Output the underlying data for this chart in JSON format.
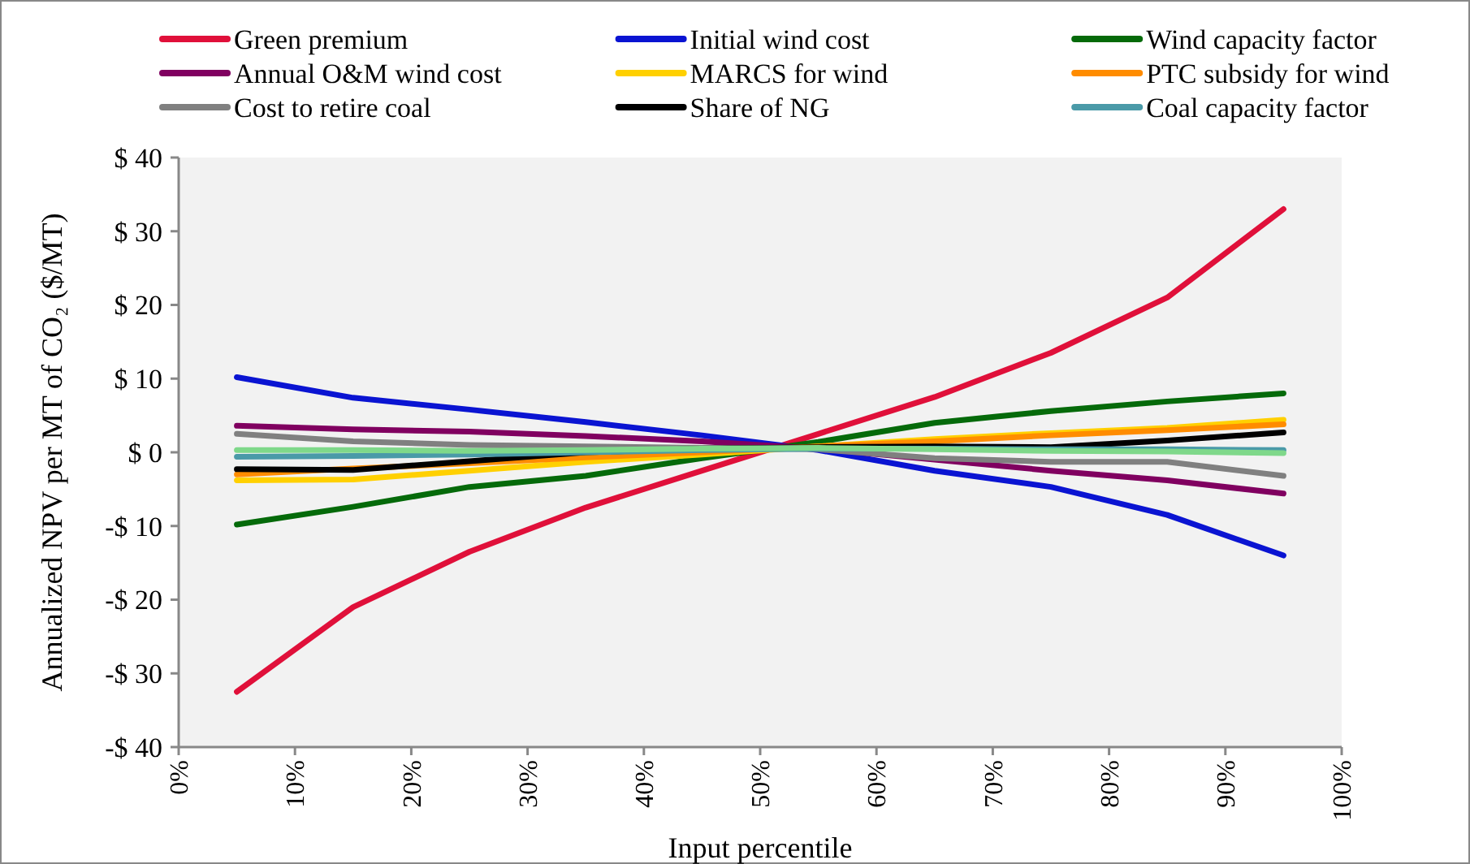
{
  "chart_data": {
    "type": "line",
    "xlabel": "Input percentile",
    "ylabel": "Annualized NPV per MT of CO₂ ($/MT)",
    "x": [
      5,
      15,
      25,
      35,
      45,
      55,
      65,
      75,
      85,
      95
    ],
    "series": [
      {
        "name": "Green premium",
        "color": "#e0103a",
        "values": [
          -32.5,
          -21,
          -13.5,
          -7.5,
          -2.5,
          2.5,
          7.5,
          13.5,
          21,
          33
        ]
      },
      {
        "name": "Initial wind cost",
        "color": "#0a14d2",
        "values": [
          10.2,
          7.4,
          5.8,
          4.1,
          2.3,
          0.3,
          -2.5,
          -4.7,
          -8.5,
          -14
        ]
      },
      {
        "name": "Wind capacity factor",
        "color": "#056a0a",
        "values": [
          -9.8,
          -7.4,
          -4.7,
          -3.2,
          -0.8,
          1.4,
          4,
          5.6,
          6.9,
          8
        ]
      },
      {
        "name": "Annual O&M wind cost",
        "color": "#800060",
        "values": [
          3.6,
          3.1,
          2.8,
          2.2,
          1.5,
          0.5,
          -1,
          -2.5,
          -3.8,
          -5.6
        ]
      },
      {
        "name": "MARCS for wind",
        "color": "#ffd000",
        "values": [
          -3.8,
          -3.7,
          -2.5,
          -1.3,
          -0.3,
          0.8,
          1.8,
          2.6,
          3.3,
          4.4
        ]
      },
      {
        "name": "PTC subsidy for wind",
        "color": "#ff8c00",
        "values": [
          -3,
          -2.2,
          -1.5,
          -0.7,
          0,
          0.8,
          1.5,
          2.3,
          3,
          3.8
        ]
      },
      {
        "name": "Cost to retire coal",
        "color": "#808080",
        "values": [
          2.5,
          1.5,
          1,
          0.8,
          0.6,
          0.4,
          -0.8,
          -1.3,
          -1.3,
          -3.2
        ]
      },
      {
        "name": "Share of NG",
        "color": "#000000",
        "values": [
          -2.3,
          -2.4,
          -1.2,
          0,
          0.5,
          0.7,
          0.8,
          0.7,
          1.6,
          2.7
        ]
      },
      {
        "name": "Coal capacity factor",
        "color": "#4a9aa8",
        "values": [
          -0.6,
          -0.5,
          -0.3,
          0,
          0.3,
          0.5,
          0.5,
          0.4,
          0.4,
          0.3
        ]
      },
      {
        "color": "#7fd88a",
        "values": [
          0.3,
          0.3,
          0.2,
          0.3,
          0.5,
          0.6,
          0.4,
          0.2,
          0.1,
          -0.1
        ]
      }
    ],
    "xlim": [
      0,
      100
    ],
    "xticks": [
      {
        "value": 0,
        "label": "0%"
      },
      {
        "value": 10,
        "label": "10%"
      },
      {
        "value": 20,
        "label": "20%"
      },
      {
        "value": 30,
        "label": "30%"
      },
      {
        "value": 40,
        "label": "40%"
      },
      {
        "value": 50,
        "label": "50%"
      },
      {
        "value": 60,
        "label": "60%"
      },
      {
        "value": 70,
        "label": "70%"
      },
      {
        "value": 80,
        "label": "80%"
      },
      {
        "value": 90,
        "label": "90%"
      },
      {
        "value": 100,
        "label": "100%"
      }
    ],
    "ylim": [
      -40,
      40
    ],
    "yticks": [
      {
        "value": -40,
        "label": "-$ 40"
      },
      {
        "value": -30,
        "label": "-$ 30"
      },
      {
        "value": -20,
        "label": "-$ 20"
      },
      {
        "value": -10,
        "label": "-$ 10"
      },
      {
        "value": 0,
        "label": "$ 0"
      },
      {
        "value": 10,
        "label": "$ 10"
      },
      {
        "value": 20,
        "label": "$ 20"
      },
      {
        "value": 30,
        "label": "$ 30"
      },
      {
        "value": 40,
        "label": "$ 40"
      }
    ],
    "grid": false,
    "legend": "top",
    "marker": "none",
    "line_style": "solid"
  }
}
